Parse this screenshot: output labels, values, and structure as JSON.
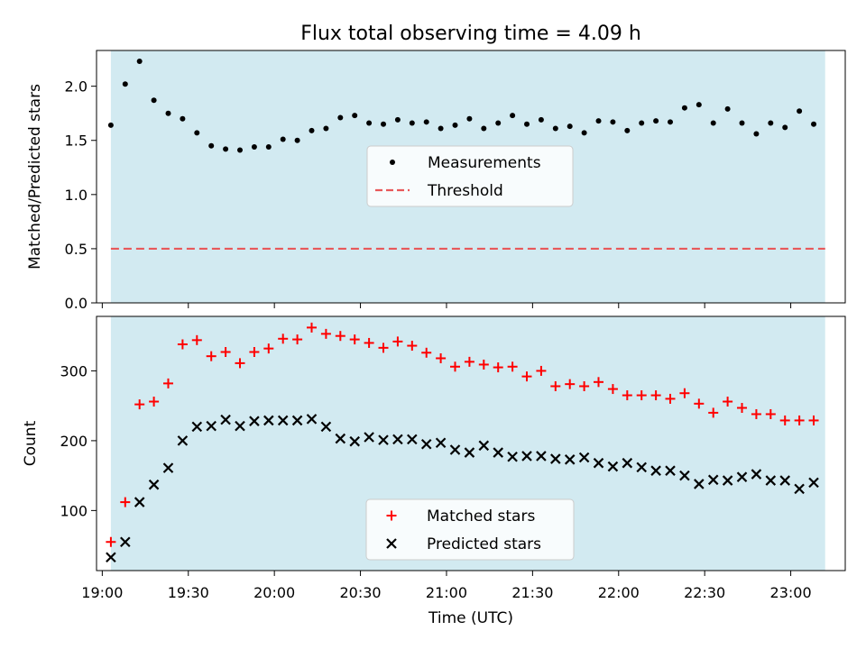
{
  "figure": {
    "background": "#ffffff"
  },
  "chart_data": [
    {
      "type": "scatter",
      "title": "Flux total observing time = 4.09 h",
      "xlabel": "",
      "ylabel": "Matched/Predicted stars",
      "yticks": [
        0.0,
        0.5,
        1.0,
        1.5,
        2.0
      ],
      "ytick_labels": [
        "0.0",
        "0.5",
        "1.0",
        "1.5",
        "2.0"
      ],
      "ylim": [
        0.0,
        2.33
      ],
      "xlim": [
        "18:58",
        "23:19"
      ],
      "observing_span": [
        "19:03",
        "23:12"
      ],
      "shade_color": "#add8e6",
      "legend": {
        "placement": "center",
        "entries": [
          {
            "label": "Measurements",
            "marker": "dot",
            "color": "#000000"
          },
          {
            "label": "Threshold",
            "marker": "dashed-line",
            "color": "#e8585a"
          }
        ]
      },
      "threshold": {
        "value": 0.5,
        "color": "#e8585a"
      },
      "series": [
        {
          "name": "Measurements",
          "color": "#000000",
          "points": [
            [
              "19:03",
              1.64
            ],
            [
              "19:08",
              2.02
            ],
            [
              "19:13",
              2.23
            ],
            [
              "19:18",
              1.87
            ],
            [
              "19:23",
              1.75
            ],
            [
              "19:28",
              1.7
            ],
            [
              "19:33",
              1.57
            ],
            [
              "19:38",
              1.45
            ],
            [
              "19:43",
              1.42
            ],
            [
              "19:48",
              1.41
            ],
            [
              "19:53",
              1.44
            ],
            [
              "19:58",
              1.44
            ],
            [
              "20:03",
              1.51
            ],
            [
              "20:08",
              1.5
            ],
            [
              "20:13",
              1.59
            ],
            [
              "20:18",
              1.61
            ],
            [
              "20:23",
              1.71
            ],
            [
              "20:28",
              1.73
            ],
            [
              "20:33",
              1.66
            ],
            [
              "20:38",
              1.65
            ],
            [
              "20:43",
              1.69
            ],
            [
              "20:48",
              1.66
            ],
            [
              "20:53",
              1.67
            ],
            [
              "20:58",
              1.61
            ],
            [
              "21:03",
              1.64
            ],
            [
              "21:08",
              1.7
            ],
            [
              "21:13",
              1.61
            ],
            [
              "21:18",
              1.66
            ],
            [
              "21:23",
              1.73
            ],
            [
              "21:28",
              1.65
            ],
            [
              "21:33",
              1.69
            ],
            [
              "21:38",
              1.61
            ],
            [
              "21:43",
              1.63
            ],
            [
              "21:48",
              1.57
            ],
            [
              "21:53",
              1.68
            ],
            [
              "21:58",
              1.67
            ],
            [
              "22:03",
              1.59
            ],
            [
              "22:08",
              1.66
            ],
            [
              "22:13",
              1.68
            ],
            [
              "22:18",
              1.67
            ],
            [
              "22:23",
              1.8
            ],
            [
              "22:28",
              1.83
            ],
            [
              "22:33",
              1.66
            ],
            [
              "22:38",
              1.79
            ],
            [
              "22:43",
              1.66
            ],
            [
              "22:48",
              1.56
            ],
            [
              "22:53",
              1.66
            ],
            [
              "22:58",
              1.62
            ],
            [
              "23:03",
              1.77
            ],
            [
              "23:08",
              1.65
            ]
          ]
        }
      ]
    },
    {
      "type": "scatter",
      "title": "",
      "xlabel": "Time (UTC)",
      "ylabel": "Count",
      "yticks": [
        100,
        200,
        300
      ],
      "ytick_labels": [
        "100",
        "200",
        "300"
      ],
      "ylim": [
        14,
        378
      ],
      "xlim": [
        "18:58",
        "23:19"
      ],
      "xticks": [
        "19:00",
        "19:30",
        "20:00",
        "20:30",
        "21:00",
        "21:30",
        "22:00",
        "22:30",
        "23:00"
      ],
      "xtick_labels": [
        "19:00",
        "19:30",
        "20:00",
        "20:30",
        "21:00",
        "21:30",
        "22:00",
        "22:30",
        "23:00"
      ],
      "observing_span": [
        "19:03",
        "23:12"
      ],
      "shade_color": "#add8e6",
      "legend": {
        "placement": "lower center",
        "entries": [
          {
            "label": "Matched stars",
            "marker": "plus",
            "color": "#ff0000"
          },
          {
            "label": "Predicted stars",
            "marker": "x",
            "color": "#000000"
          }
        ]
      },
      "series": [
        {
          "name": "Matched stars",
          "marker": "plus",
          "color": "#ff0000",
          "points": [
            [
              "19:03",
              55
            ],
            [
              "19:08",
              112
            ],
            [
              "19:13",
              252
            ],
            [
              "19:18",
              256
            ],
            [
              "19:23",
              282
            ],
            [
              "19:28",
              338
            ],
            [
              "19:33",
              344
            ],
            [
              "19:38",
              321
            ],
            [
              "19:43",
              327
            ],
            [
              "19:48",
              311
            ],
            [
              "19:53",
              327
            ],
            [
              "19:58",
              332
            ],
            [
              "20:03",
              346
            ],
            [
              "20:08",
              345
            ],
            [
              "20:13",
              362
            ],
            [
              "20:18",
              353
            ],
            [
              "20:23",
              350
            ],
            [
              "20:28",
              345
            ],
            [
              "20:33",
              340
            ],
            [
              "20:38",
              333
            ],
            [
              "20:43",
              342
            ],
            [
              "20:48",
              336
            ],
            [
              "20:53",
              326
            ],
            [
              "20:58",
              318
            ],
            [
              "21:03",
              306
            ],
            [
              "21:08",
              313
            ],
            [
              "21:13",
              309
            ],
            [
              "21:18",
              305
            ],
            [
              "21:23",
              306
            ],
            [
              "21:28",
              292
            ],
            [
              "21:33",
              300
            ],
            [
              "21:38",
              278
            ],
            [
              "21:43",
              281
            ],
            [
              "21:48",
              278
            ],
            [
              "21:53",
              284
            ],
            [
              "21:58",
              274
            ],
            [
              "22:03",
              265
            ],
            [
              "22:08",
              265
            ],
            [
              "22:13",
              265
            ],
            [
              "22:18",
              260
            ],
            [
              "22:23",
              268
            ],
            [
              "22:28",
              253
            ],
            [
              "22:33",
              240
            ],
            [
              "22:38",
              256
            ],
            [
              "22:43",
              247
            ],
            [
              "22:48",
              238
            ],
            [
              "22:53",
              238
            ],
            [
              "22:58",
              229
            ],
            [
              "23:03",
              229
            ],
            [
              "23:08",
              229
            ]
          ]
        },
        {
          "name": "Predicted stars",
          "marker": "x",
          "color": "#000000",
          "points": [
            [
              "19:03",
              33
            ],
            [
              "19:08",
              55
            ],
            [
              "19:13",
              112
            ],
            [
              "19:18",
              137
            ],
            [
              "19:23",
              161
            ],
            [
              "19:28",
              200
            ],
            [
              "19:33",
              220
            ],
            [
              "19:38",
              221
            ],
            [
              "19:43",
              230
            ],
            [
              "19:48",
              221
            ],
            [
              "19:53",
              228
            ],
            [
              "19:58",
              229
            ],
            [
              "20:03",
              229
            ],
            [
              "20:08",
              229
            ],
            [
              "20:13",
              231
            ],
            [
              "20:18",
              220
            ],
            [
              "20:23",
              203
            ],
            [
              "20:28",
              199
            ],
            [
              "20:33",
              205
            ],
            [
              "20:38",
              201
            ],
            [
              "20:43",
              202
            ],
            [
              "20:48",
              202
            ],
            [
              "20:53",
              195
            ],
            [
              "20:58",
              197
            ],
            [
              "21:03",
              187
            ],
            [
              "21:08",
              183
            ],
            [
              "21:13",
              193
            ],
            [
              "21:18",
              183
            ],
            [
              "21:23",
              177
            ],
            [
              "21:28",
              178
            ],
            [
              "21:33",
              178
            ],
            [
              "21:38",
              174
            ],
            [
              "21:43",
              173
            ],
            [
              "21:48",
              176
            ],
            [
              "21:53",
              168
            ],
            [
              "21:58",
              163
            ],
            [
              "22:03",
              168
            ],
            [
              "22:08",
              162
            ],
            [
              "22:13",
              157
            ],
            [
              "22:18",
              157
            ],
            [
              "22:23",
              150
            ],
            [
              "22:28",
              138
            ],
            [
              "22:33",
              144
            ],
            [
              "22:38",
              143
            ],
            [
              "22:43",
              148
            ],
            [
              "22:48",
              152
            ],
            [
              "22:53",
              143
            ],
            [
              "22:58",
              143
            ],
            [
              "23:03",
              131
            ],
            [
              "23:08",
              140
            ]
          ]
        }
      ]
    }
  ]
}
